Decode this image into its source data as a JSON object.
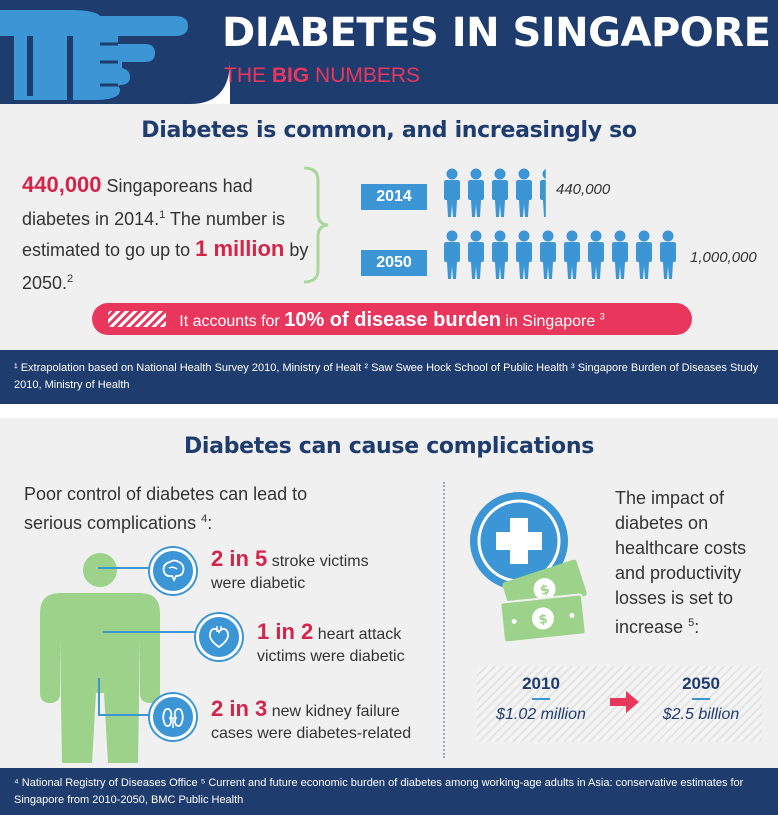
{
  "header": {
    "title": "DIABETES IN SINGAPORE",
    "subtitle_pre": "THE ",
    "subtitle_bold": "BIG",
    "subtitle_post": " NUMBERS",
    "icon": "pointing-hand-icon",
    "colors": {
      "navy": "#1f3c6e",
      "accent_red": "#e8365d",
      "blue": "#3c95d4"
    }
  },
  "section1": {
    "heading": "Diabetes is common, and increasingly so",
    "stat": {
      "num1": "440,000",
      "text1": " Singaporeans had diabetes in 2014.",
      "sup1": "1",
      "text2": " The number is estimated to go up to ",
      "num2": "1 million",
      "text3": " by 2050.",
      "sup2": "2"
    },
    "rows": [
      {
        "year": "2014",
        "count_label": "440,000",
        "people": 4.4
      },
      {
        "year": "2050",
        "count_label": "1,000,000",
        "people": 10
      }
    ],
    "burden": {
      "pre": "It accounts for ",
      "bold": "10% of disease burden",
      "post": " in Singapore",
      "sup": "3"
    }
  },
  "footnotes1": {
    "text": "¹ Extrapolation based on National Health Survey 2010, Ministry of Healt  ² Saw Swee Hock School of Public Health ³ Singapore Burden of Diseases Study 2010, Ministry of Health"
  },
  "section2": {
    "heading": "Diabetes can cause complications",
    "intro": "Poor control of diabetes can lead to serious complications",
    "intro_sup": "4",
    "intro_end": ":",
    "complications": [
      {
        "icon": "brain-icon",
        "stat": "2 in 5",
        "text1": " stroke victims",
        "text2": "were diabetic"
      },
      {
        "icon": "heart-icon",
        "stat": "1 in 2",
        "text1": " heart attack",
        "text2": "victims were diabetic"
      },
      {
        "icon": "kidney-icon",
        "stat": "2 in 3",
        "text1": " new kidney failure",
        "text2": "cases were diabetes-related"
      }
    ],
    "impact": {
      "text": "The impact of diabetes on healthcare costs and productivity losses is set to increase",
      "sup": "5",
      "end": ":"
    },
    "costs": [
      {
        "year": "2010",
        "value": "$1.02 million"
      },
      {
        "year": "2050",
        "value": "$2.5 billion"
      }
    ]
  },
  "footnotes2": {
    "text": "⁴ National Registry of Diseases Office ⁵ Current and future economic burden of diabetes among working-age adults in Asia: conservative estimates for Singapore from 2010-2050, BMC Public Health"
  }
}
